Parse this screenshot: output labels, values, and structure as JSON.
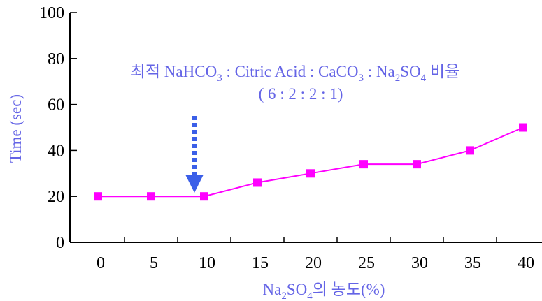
{
  "chart_data": {
    "type": "line",
    "xlabel_main": "Na",
    "xlabel_sub1": "2",
    "xlabel_mid": "SO",
    "xlabel_sub2": "4",
    "xlabel_tail": "의 농도(%)",
    "ylabel": "Time (sec)",
    "categories": [
      "0",
      "5",
      "10",
      "15",
      "20",
      "25",
      "30",
      "35",
      "40"
    ],
    "yticks": [
      "0",
      "20",
      "40",
      "60",
      "80",
      "100"
    ],
    "ylim": [
      0,
      100
    ],
    "series": [
      {
        "values": [
          20,
          20,
          20,
          26,
          30,
          34,
          34,
          40,
          50
        ]
      }
    ],
    "annotation": {
      "line1_parts": [
        "최적 NaHCO",
        "3",
        " : Citric Acid : CaCO",
        "3",
        " : Na",
        "2",
        "SO",
        "4",
        " 비율"
      ],
      "line2": "( 6 : 2 : 2 : 1)",
      "arrow_at_x_index": 2
    },
    "colors": {
      "series": "#ff00ff",
      "annotation": "#6464e6",
      "axis_title": "#6464e6",
      "arrow": "#3b5fe8"
    }
  }
}
